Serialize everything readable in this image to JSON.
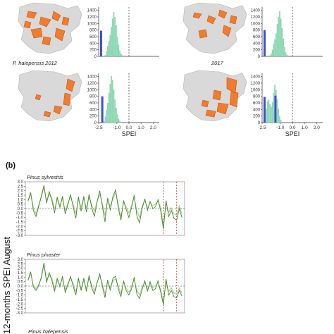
{
  "panel_b_label": "(b)",
  "y_axis_label": "12-months SPEI August",
  "map_captions": [
    "P. halepensis    2012",
    "2017"
  ],
  "colors": {
    "map_land": "#d9d9d9",
    "map_orange": "#f07c2e",
    "map_dark_orange": "#c8541a",
    "hist_fill": "#8dd8b4",
    "marker_blue": "#3b4fd0",
    "line_light": "#a8c98a",
    "line_dark": "#3f8c2a",
    "year_line": "#d23030"
  },
  "chart_data": [
    {
      "type": "bar",
      "panel": "histogram-top-left",
      "xlabel": "",
      "ylabel": "",
      "x_ticks": [],
      "y_ticks": [
        "0",
        "200",
        "400",
        "600",
        "800",
        "1000",
        "1200",
        "1400"
      ],
      "xlim": [
        -2.5,
        2.5
      ],
      "ylim": [
        0,
        1500
      ],
      "bin_start": -2.0,
      "bin_width": 0.1,
      "counts": [
        40,
        150,
        320,
        480,
        650,
        900,
        1150,
        1350,
        1200,
        950,
        600,
        350,
        180,
        90,
        40,
        15
      ],
      "marker_x": -2.3,
      "marker_height": 780,
      "reference_x": 0
    },
    {
      "type": "bar",
      "panel": "histogram-top-right",
      "xlabel": "",
      "ylabel": "",
      "x_ticks": [],
      "y_ticks": [
        "0",
        "200",
        "400",
        "600",
        "800",
        "1000",
        "1200",
        "1400"
      ],
      "xlim": [
        -2.5,
        2.5
      ],
      "ylim": [
        0,
        1500
      ],
      "bin_start": -1.9,
      "bin_width": 0.1,
      "counts": [
        30,
        90,
        200,
        380,
        520,
        700,
        980,
        1200,
        1380,
        1150,
        860,
        540,
        280,
        120,
        50
      ],
      "marker_x": -2.3,
      "marker_height": 800,
      "reference_x": 0
    },
    {
      "type": "bar",
      "panel": "histogram-bottom-left",
      "xlabel": "SPEI",
      "ylabel": "",
      "x_ticks": [
        "-2.5",
        "-1.0",
        "0.0",
        "1.0",
        "2.0"
      ],
      "y_ticks": [
        "0",
        "200",
        "400",
        "600",
        "800",
        "1000",
        "1200",
        "1400"
      ],
      "xlim": [
        -2.5,
        2.5
      ],
      "ylim": [
        0,
        1500
      ],
      "bin_start": -2.1,
      "bin_width": 0.1,
      "counts": [
        50,
        180,
        380,
        600,
        900,
        1180,
        1420,
        1300,
        1000,
        700,
        440,
        250,
        120,
        55,
        20
      ],
      "marker_x": -2.2,
      "marker_height": 800,
      "reference_x": 0
    },
    {
      "type": "bar",
      "panel": "histogram-bottom-right",
      "xlabel": "SPEI",
      "ylabel": "",
      "x_ticks": [
        "-2.5",
        "-1.0",
        "0.0",
        "1.0",
        "2.0"
      ],
      "y_ticks": [
        "0",
        "200",
        "400",
        "600",
        "800",
        "1000",
        "1200",
        "1400"
      ],
      "xlim": [
        -2.5,
        2.5
      ],
      "ylim": [
        0,
        1500
      ],
      "bin_start": -2.4,
      "bin_width": 0.1,
      "counts": [
        60,
        200,
        420,
        650,
        700,
        560,
        480,
        620,
        900,
        1150,
        1000,
        720,
        420,
        200,
        80
      ],
      "marker_x": -2.3,
      "marker_height": 780,
      "marker2_x": -1.4,
      "marker2_height": 820,
      "reference_x": 0
    },
    {
      "type": "line",
      "panel": "Pinus sylvestris",
      "title": "Pinus sylvestris",
      "xlabel": "",
      "ylabel": "",
      "y_ticks": [
        "3.0",
        "2.5",
        "2.0",
        "1.5",
        "1.0",
        "0.5",
        "0.0",
        "-0.5",
        "-1.0",
        "-1.5",
        "-2.0",
        "-2.5",
        "-3.0"
      ],
      "ylim": [
        -3.0,
        3.0
      ],
      "x": [
        1961,
        1962,
        1963,
        1964,
        1965,
        1966,
        1967,
        1968,
        1969,
        1970,
        1971,
        1972,
        1973,
        1974,
        1975,
        1976,
        1977,
        1978,
        1979,
        1980,
        1981,
        1982,
        1983,
        1984,
        1985,
        1986,
        1987,
        1988,
        1989,
        1990,
        1991,
        1992,
        1993,
        1994,
        1995,
        1996,
        1997,
        1998,
        1999,
        2000,
        2001,
        2002,
        2003,
        2004,
        2005,
        2006,
        2007,
        2008,
        2009,
        2010,
        2011,
        2012,
        2013,
        2014,
        2015,
        2016,
        2017,
        2018,
        2019
      ],
      "xlim": [
        1960,
        2020
      ],
      "reference_lines": [
        2012,
        2017
      ],
      "series": [
        {
          "values": [
            0.8,
            1.6,
            0.2,
            -0.6,
            0.4,
            1.2,
            2.4,
            0.9,
            1.6,
            1.2,
            -0.1,
            1.0,
            0.4,
            1.1,
            -0.2,
            0.6,
            1.3,
            0.5,
            -0.5,
            1.0,
            0.2,
            1.1,
            0.1,
            1.3,
            0.4,
            -0.3,
            0.8,
            1.6,
            0.6,
            -0.8,
            1.0,
            0.3,
            1.1,
            1.8,
            0.5,
            -0.9,
            0.7,
            0.2,
            -0.5,
            0.4,
            1.2,
            -0.2,
            -1.0,
            0.3,
            0.9,
            0.1,
            0.6,
            0.3,
            0.5,
            0.8,
            0.2,
            -2.0,
            0.6,
            -0.4,
            0.1,
            -0.6,
            -0.7,
            0.3,
            -0.6
          ]
        },
        {
          "values": [
            0.9,
            1.8,
            -0.2,
            -0.9,
            0.2,
            1.4,
            2.6,
            0.6,
            1.9,
            0.9,
            -0.5,
            1.3,
            0.1,
            1.4,
            -0.6,
            0.4,
            1.6,
            0.2,
            -1.1,
            1.3,
            -0.3,
            1.4,
            -0.4,
            1.6,
            0.1,
            -0.9,
            0.7,
            2.0,
            0.3,
            -1.5,
            1.2,
            -0.2,
            1.4,
            2.1,
            0.1,
            -1.3,
            0.9,
            -0.1,
            -1.0,
            0.1,
            1.5,
            -0.8,
            -1.6,
            0.0,
            1.1,
            -0.2,
            0.8,
            0.0,
            0.2,
            1.0,
            -0.3,
            -2.3,
            0.9,
            -0.9,
            -0.2,
            -1.1,
            -1.3,
            0.0,
            -1.0
          ]
        }
      ]
    },
    {
      "type": "line",
      "panel": "Pinus pinaster",
      "title": "Pinus pinaster",
      "xlabel": "",
      "ylabel": "",
      "y_ticks": [
        "3.0",
        "2.5",
        "2.0",
        "1.5",
        "1.0",
        "0.5",
        "0.0",
        "-0.5",
        "-1.0",
        "-1.5",
        "-2.0",
        "-2.5",
        "-3.0"
      ],
      "ylim": [
        -3.0,
        3.0
      ],
      "x": [
        1961,
        1962,
        1963,
        1964,
        1965,
        1966,
        1967,
        1968,
        1969,
        1970,
        1971,
        1972,
        1973,
        1974,
        1975,
        1976,
        1977,
        1978,
        1979,
        1980,
        1981,
        1982,
        1983,
        1984,
        1985,
        1986,
        1987,
        1988,
        1989,
        1990,
        1991,
        1992,
        1993,
        1994,
        1995,
        1996,
        1997,
        1998,
        1999,
        2000,
        2001,
        2002,
        2003,
        2004,
        2005,
        2006,
        2007,
        2008,
        2009,
        2010,
        2011,
        2012,
        2013,
        2014,
        2015,
        2016,
        2017,
        2018,
        2019
      ],
      "xlim": [
        1960,
        2020
      ],
      "reference_lines": [
        2012,
        2017
      ],
      "series": [
        {
          "values": [
            0.6,
            1.4,
            0.1,
            -0.3,
            0.2,
            0.8,
            2.4,
            0.7,
            1.2,
            0.9,
            -0.3,
            0.6,
            0.2,
            0.8,
            -0.4,
            0.3,
            0.9,
            0.3,
            -0.6,
            0.6,
            -0.2,
            0.6,
            -0.3,
            0.9,
            0.1,
            -0.5,
            0.4,
            1.1,
            0.3,
            -0.9,
            0.5,
            -0.2,
            0.6,
            0.8,
            0.0,
            -0.8,
            0.4,
            -0.2,
            -0.7,
            0.0,
            0.7,
            -0.5,
            -1.0,
            -0.1,
            0.4,
            -0.3,
            0.3,
            -0.2,
            0.0,
            0.4,
            -0.4,
            -1.8,
            0.5,
            -0.6,
            -0.2,
            -0.8,
            -0.9,
            -0.2,
            -0.8
          ]
        },
        {
          "values": [
            0.7,
            1.6,
            -0.1,
            -0.5,
            0.0,
            1.0,
            2.6,
            0.4,
            1.5,
            0.6,
            -0.6,
            0.9,
            -0.1,
            1.1,
            -0.7,
            0.1,
            1.1,
            0.0,
            -1.0,
            0.9,
            -0.5,
            0.9,
            -0.6,
            1.2,
            -0.2,
            -0.9,
            0.3,
            1.4,
            0.0,
            -1.3,
            0.7,
            -0.5,
            0.9,
            1.1,
            -0.3,
            -1.2,
            0.6,
            -0.5,
            -1.0,
            -0.3,
            1.0,
            -0.9,
            -1.4,
            -0.4,
            0.6,
            -0.6,
            0.5,
            -0.5,
            -0.3,
            0.6,
            -0.7,
            -2.1,
            0.8,
            -1.0,
            -0.5,
            -1.2,
            -1.3,
            -0.5,
            -1.1
          ]
        }
      ]
    }
  ],
  "panel_c_title": "Pinus halepensis"
}
